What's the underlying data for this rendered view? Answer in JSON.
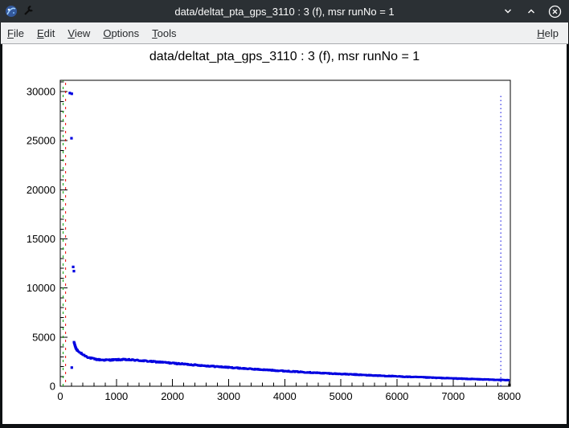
{
  "window": {
    "title": "data/deltat_pta_gps_3110 : 3 (f), msr runNo = 1",
    "icons": {
      "titlebar_left": [
        "root-logo-icon",
        "wrench-icon"
      ],
      "titlebar_right": [
        "chevron-down-icon",
        "chevron-up-icon",
        "close-circle-icon"
      ]
    }
  },
  "menu": {
    "items": [
      "File",
      "Edit",
      "View",
      "Options",
      "Tools"
    ],
    "help": "Help"
  },
  "chart_data": {
    "type": "scatter",
    "title": "data/deltat_pta_gps_3110 : 3 (f), msr runNo = 1",
    "xlabel": "",
    "ylabel": "",
    "xlim": [
      0,
      8020
    ],
    "ylim": [
      0,
      31150
    ],
    "x_ticks": [
      0,
      1000,
      2000,
      3000,
      4000,
      5000,
      6000,
      7000,
      8000
    ],
    "y_ticks": [
      0,
      5000,
      10000,
      15000,
      20000,
      25000,
      30000
    ],
    "x_minor_step": 200,
    "y_minor_step": 1000,
    "grid": false,
    "legend": false,
    "marker_color": "#0000e0",
    "marker_size": 2.6,
    "band_step": 10,
    "series": {
      "outliers": [
        [
          170,
          29850
        ],
        [
          205,
          29780
        ],
        [
          200,
          25250
        ],
        [
          230,
          12150
        ],
        [
          243,
          11720
        ],
        [
          245,
          4480
        ],
        [
          252,
          4360
        ],
        [
          258,
          4240
        ],
        [
          264,
          4120
        ],
        [
          270,
          4010
        ],
        [
          277,
          3910
        ],
        [
          285,
          3810
        ],
        [
          295,
          3710
        ],
        [
          305,
          3640
        ],
        [
          205,
          1900
        ]
      ],
      "decay_band": [
        [
          310,
          3600
        ],
        [
          350,
          3420
        ],
        [
          400,
          3240
        ],
        [
          450,
          3080
        ],
        [
          500,
          2950
        ],
        [
          550,
          2850
        ],
        [
          600,
          2780
        ],
        [
          650,
          2730
        ],
        [
          700,
          2700
        ],
        [
          800,
          2670
        ],
        [
          900,
          2680
        ],
        [
          1000,
          2700
        ],
        [
          1100,
          2710
        ],
        [
          1200,
          2700
        ],
        [
          1300,
          2670
        ],
        [
          1400,
          2630
        ],
        [
          1500,
          2580
        ],
        [
          1600,
          2530
        ],
        [
          1700,
          2490
        ],
        [
          1800,
          2450
        ],
        [
          1900,
          2400
        ],
        [
          2000,
          2350
        ],
        [
          2200,
          2260
        ],
        [
          2400,
          2170
        ],
        [
          2600,
          2080
        ],
        [
          2800,
          2000
        ],
        [
          3000,
          1920
        ],
        [
          3200,
          1840
        ],
        [
          3400,
          1760
        ],
        [
          3600,
          1690
        ],
        [
          3800,
          1620
        ],
        [
          4000,
          1550
        ],
        [
          4250,
          1470
        ],
        [
          4500,
          1390
        ],
        [
          4750,
          1320
        ],
        [
          5000,
          1250
        ],
        [
          5250,
          1190
        ],
        [
          5500,
          1120
        ],
        [
          5750,
          1060
        ],
        [
          6000,
          1000
        ],
        [
          6250,
          950
        ],
        [
          6500,
          900
        ],
        [
          6750,
          850
        ],
        [
          7000,
          800
        ],
        [
          7250,
          750
        ],
        [
          7500,
          700
        ],
        [
          7750,
          660
        ],
        [
          8000,
          620
        ]
      ],
      "end_point": [
        [
          8005,
          130
        ]
      ]
    },
    "lines": [
      {
        "name": "t0-line",
        "x": 50,
        "y0": 0,
        "y1": 31150,
        "color": "#00a400",
        "dash": "3 7",
        "dashoffset": 0
      },
      {
        "name": "first-good-bin-line",
        "x": 95,
        "y0": 0,
        "y1": 31150,
        "color": "#ee0000",
        "dash": "3 7",
        "dashoffset": 5
      },
      {
        "name": "last-good-bin-line",
        "x": 7850,
        "y0": 0,
        "y1": 29800,
        "color": "#0000e0",
        "dash": "1.5 3.5",
        "dashoffset": 0
      }
    ]
  }
}
